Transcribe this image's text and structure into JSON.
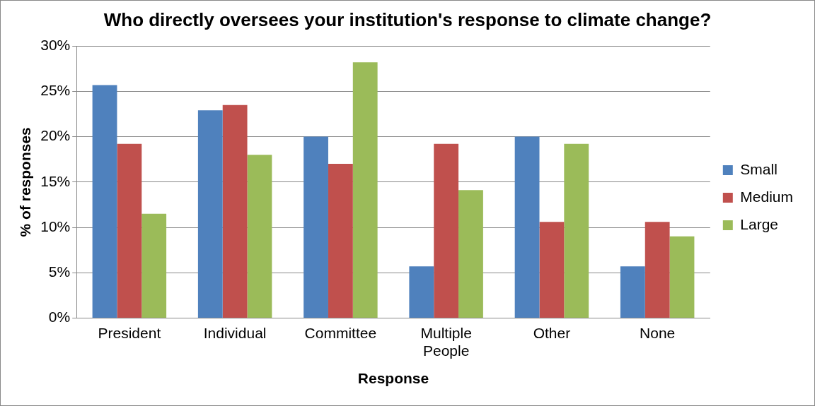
{
  "chart_data": {
    "type": "bar",
    "title": "Who directly oversees your institution's response to climate change?",
    "xlabel": "Response",
    "ylabel": "% of responses",
    "categories": [
      "President",
      "Individual",
      "Committee",
      "Multiple People",
      "Other",
      "None"
    ],
    "series": [
      {
        "name": "Small",
        "color": "#4f81bd",
        "values": [
          25.7,
          22.9,
          20.0,
          5.7,
          20.0,
          5.7
        ]
      },
      {
        "name": "Medium",
        "color": "#c0504d",
        "values": [
          19.2,
          23.5,
          17.0,
          19.2,
          10.6,
          10.6
        ]
      },
      {
        "name": "Large",
        "color": "#9bbb59",
        "values": [
          11.5,
          18.0,
          28.2,
          14.1,
          19.2,
          9.0
        ]
      }
    ],
    "ylim": [
      0,
      30
    ],
    "yticks": [
      {
        "value": 0,
        "label": "0%"
      },
      {
        "value": 5,
        "label": "5%"
      },
      {
        "value": 10,
        "label": "10%"
      },
      {
        "value": 15,
        "label": "15%"
      },
      {
        "value": 20,
        "label": "20%"
      },
      {
        "value": 25,
        "label": "25%"
      },
      {
        "value": 30,
        "label": "30%"
      }
    ],
    "grid": "y",
    "legend": "right"
  }
}
